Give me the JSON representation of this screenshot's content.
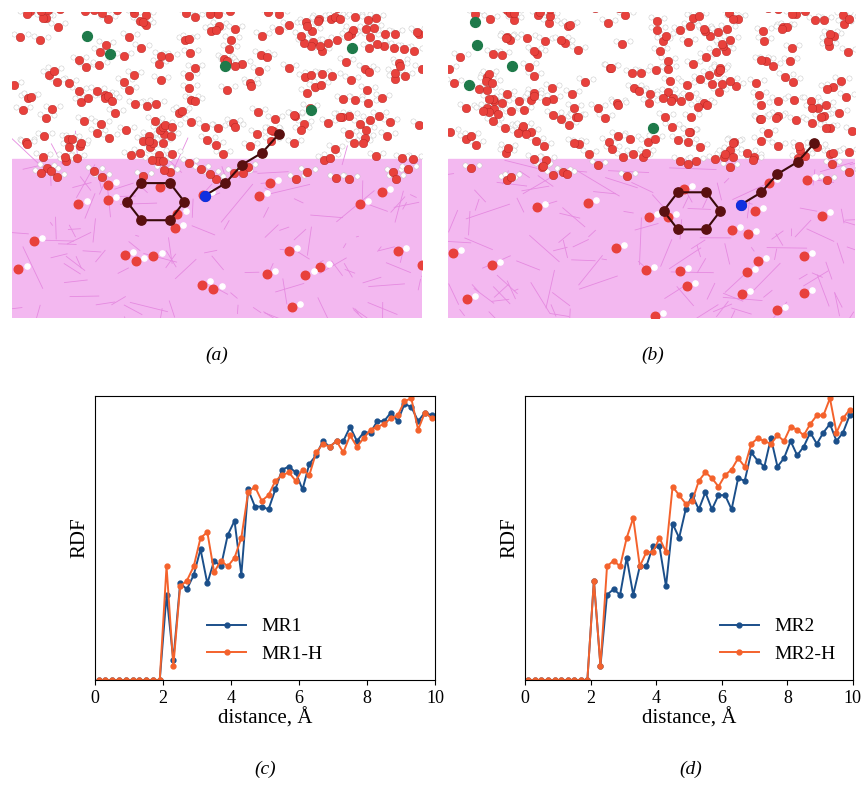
{
  "chart_data": [
    {
      "type": "image",
      "annotations": [
        "(a)"
      ]
    },
    {
      "type": "image",
      "annotations": [
        "(b)"
      ]
    },
    {
      "type": "line",
      "annotations": [
        "(c)"
      ],
      "x_label": "distance, Å",
      "y_label": "RDF",
      "x": [
        0.1,
        0.3,
        0.5,
        0.7,
        0.9,
        1.1,
        1.3,
        1.5,
        1.7,
        1.9,
        2.1,
        2.3,
        2.5,
        2.7,
        2.9,
        3.1,
        3.3,
        3.5,
        3.7,
        3.9,
        4.1,
        4.3,
        4.5,
        4.7,
        4.9,
        5.1,
        5.3,
        5.5,
        5.7,
        5.9,
        6.1,
        6.3,
        6.5,
        6.7,
        6.9,
        7.1,
        7.3,
        7.5,
        7.7,
        7.9,
        8.1,
        8.3,
        8.5,
        8.7,
        8.9,
        9.1,
        9.3,
        9.5,
        9.7,
        9.9
      ],
      "xlim": [
        0,
        10
      ],
      "xticks": [
        0,
        2,
        4,
        6,
        8,
        10
      ],
      "ylim": [
        0,
        1
      ],
      "tick_labels": "x",
      "legend": "lower center",
      "marker": "o",
      "line_style": "solid",
      "series": [
        {
          "name": "MR1",
          "color": "#1b4f8a",
          "values": [
            0,
            0,
            0,
            0,
            0,
            0,
            0,
            0,
            0,
            0,
            0.3,
            0.07,
            0.34,
            0.32,
            0.37,
            0.46,
            0.34,
            0.42,
            0.4,
            0.51,
            0.56,
            0.37,
            0.67,
            0.61,
            0.61,
            0.6,
            0.67,
            0.74,
            0.75,
            0.73,
            0.67,
            0.76,
            0.79,
            0.84,
            0.82,
            0.84,
            0.84,
            0.89,
            0.84,
            0.87,
            0.87,
            0.91,
            0.91,
            0.94,
            0.91,
            0.97,
            0.96,
            0.91,
            0.94,
            0.93
          ]
        },
        {
          "name": "MR1-H",
          "color": "#f4622c",
          "values": [
            0,
            0,
            0,
            0,
            0,
            0,
            0,
            0,
            0,
            0,
            0.4,
            0.05,
            0.33,
            0.35,
            0.4,
            0.5,
            0.52,
            0.38,
            0.42,
            0.4,
            0.43,
            0.5,
            0.66,
            0.68,
            0.63,
            0.65,
            0.7,
            0.72,
            0.73,
            0.7,
            0.74,
            0.72,
            0.8,
            0.83,
            0.82,
            0.84,
            0.8,
            0.86,
            0.82,
            0.85,
            0.88,
            0.89,
            0.9,
            0.92,
            0.93,
            0.98,
            0.99,
            0.88,
            0.94,
            0.92
          ]
        }
      ]
    },
    {
      "type": "line",
      "annotations": [
        "(d)"
      ],
      "x_label": "distance, Å",
      "y_label": "RDF",
      "x": [
        0.1,
        0.3,
        0.5,
        0.7,
        0.9,
        1.1,
        1.3,
        1.5,
        1.7,
        1.9,
        2.1,
        2.3,
        2.5,
        2.7,
        2.9,
        3.1,
        3.3,
        3.5,
        3.7,
        3.9,
        4.1,
        4.3,
        4.5,
        4.7,
        4.9,
        5.1,
        5.3,
        5.5,
        5.7,
        5.9,
        6.1,
        6.3,
        6.5,
        6.7,
        6.9,
        7.1,
        7.3,
        7.5,
        7.7,
        7.9,
        8.1,
        8.3,
        8.5,
        8.7,
        8.9,
        9.1,
        9.3,
        9.5,
        9.7,
        9.9
      ],
      "xlim": [
        0,
        10
      ],
      "xticks": [
        0,
        2,
        4,
        6,
        8,
        10
      ],
      "ylim": [
        0,
        1
      ],
      "tick_labels": "x",
      "legend": "lower right",
      "marker": "o",
      "line_style": "solid",
      "series": [
        {
          "name": "MR2",
          "color": "#1b4f8a",
          "values": [
            0,
            0,
            0,
            0,
            0,
            0,
            0,
            0,
            0,
            0,
            0.35,
            0.05,
            0.3,
            0.32,
            0.3,
            0.43,
            0.3,
            0.4,
            0.4,
            0.47,
            0.47,
            0.33,
            0.55,
            0.5,
            0.6,
            0.65,
            0.6,
            0.66,
            0.6,
            0.65,
            0.65,
            0.6,
            0.71,
            0.7,
            0.8,
            0.77,
            0.75,
            0.85,
            0.75,
            0.78,
            0.84,
            0.79,
            0.82,
            0.87,
            0.83,
            0.87,
            0.9,
            0.84,
            0.87,
            0.93
          ]
        },
        {
          "name": "MR2-H",
          "color": "#f4622c",
          "values": [
            0,
            0,
            0,
            0,
            0,
            0,
            0,
            0,
            0,
            0,
            0.35,
            0.05,
            0.4,
            0.42,
            0.4,
            0.5,
            0.57,
            0.4,
            0.45,
            0.45,
            0.5,
            0.45,
            0.68,
            0.65,
            0.62,
            0.63,
            0.7,
            0.73,
            0.71,
            0.68,
            0.72,
            0.74,
            0.78,
            0.75,
            0.83,
            0.85,
            0.84,
            0.83,
            0.86,
            0.84,
            0.89,
            0.88,
            0.86,
            0.9,
            0.93,
            0.93,
            0.99,
            0.87,
            0.92,
            0.95
          ]
        }
      ]
    }
  ]
}
